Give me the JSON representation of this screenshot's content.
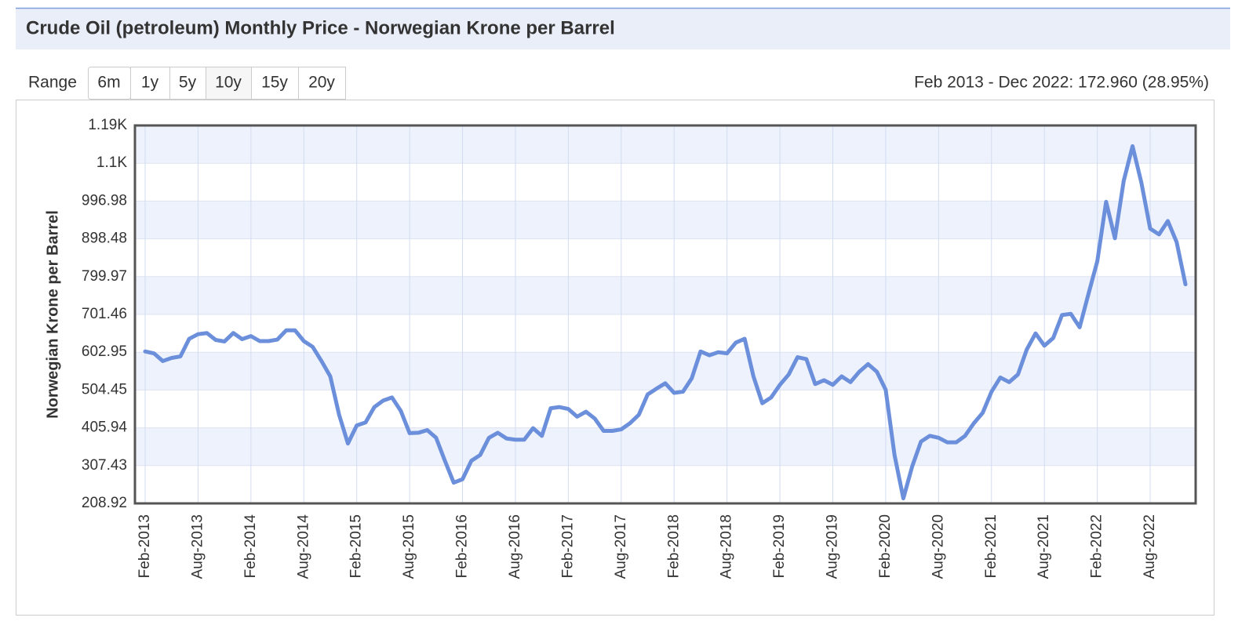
{
  "title": "Crude Oil (petroleum) Monthly Price - Norwegian Krone per Barrel",
  "range_label": "Range",
  "range_buttons": [
    {
      "label": "6m",
      "selected": false
    },
    {
      "label": "1y",
      "selected": false
    },
    {
      "label": "5y",
      "selected": false
    },
    {
      "label": "10y",
      "selected": true
    },
    {
      "label": "15y",
      "selected": false
    },
    {
      "label": "20y",
      "selected": false
    }
  ],
  "range_summary": "Feb 2013 - Dec 2022: 172.960 (28.95%)",
  "chart_data": {
    "type": "line",
    "y_label": "Norwegian Krone per Barrel",
    "categories": [
      "Feb-2013",
      null,
      null,
      null,
      null,
      null,
      "Aug-2013",
      null,
      null,
      null,
      null,
      null,
      "Feb-2014",
      null,
      null,
      null,
      null,
      null,
      "Aug-2014",
      null,
      null,
      null,
      null,
      null,
      "Feb-2015",
      null,
      null,
      null,
      null,
      null,
      "Aug-2015",
      null,
      null,
      null,
      null,
      null,
      "Feb-2016",
      null,
      null,
      null,
      null,
      null,
      "Aug-2016",
      null,
      null,
      null,
      null,
      null,
      "Feb-2017",
      null,
      null,
      null,
      null,
      null,
      "Aug-2017",
      null,
      null,
      null,
      null,
      null,
      "Feb-2018",
      null,
      null,
      null,
      null,
      null,
      "Aug-2018",
      null,
      null,
      null,
      null,
      null,
      "Feb-2019",
      null,
      null,
      null,
      null,
      null,
      "Aug-2019",
      null,
      null,
      null,
      null,
      null,
      "Feb-2020",
      null,
      null,
      null,
      null,
      null,
      "Aug-2020",
      null,
      null,
      null,
      null,
      null,
      "Feb-2021",
      null,
      null,
      null,
      null,
      null,
      "Aug-2021",
      null,
      null,
      null,
      null,
      null,
      "Feb-2022",
      null,
      null,
      null,
      null,
      null,
      "Aug-2022",
      null,
      null,
      null,
      null
    ],
    "series": [
      {
        "name": "Norwegian Krone per Barrel",
        "color": "#6b8fdb",
        "values": [
          605,
          600,
          580,
          588,
          592,
          638,
          650,
          653,
          635,
          631,
          653,
          637,
          645,
          632,
          632,
          636,
          660,
          660,
          632,
          617,
          580,
          540,
          440,
          365,
          412,
          420,
          460,
          477,
          485,
          450,
          392,
          393,
          400,
          380,
          320,
          263,
          272,
          320,
          335,
          380,
          393,
          378,
          375,
          375,
          405,
          385,
          457,
          460,
          455,
          435,
          448,
          430,
          398,
          398,
          402,
          418,
          440,
          493,
          508,
          522,
          497,
          500,
          535,
          605,
          595,
          603,
          600,
          628,
          638,
          540,
          470,
          485,
          518,
          545,
          590,
          585,
          520,
          530,
          518,
          540,
          525,
          552,
          572,
          552,
          505,
          335,
          222,
          305,
          370,
          385,
          380,
          368,
          368,
          385,
          418,
          445,
          500,
          537,
          525,
          545,
          610,
          652,
          620,
          640,
          700,
          703,
          668,
          755,
          840,
          995,
          900,
          1050,
          1140,
          1045,
          925,
          910,
          945,
          890,
          780
        ]
      }
    ],
    "ylim": [
      208.92,
      1194
    ],
    "yticks": [
      208.92,
      307.43,
      405.94,
      504.45,
      602.95,
      701.46,
      799.97,
      898.48,
      996.98,
      {
        "value": 1095.49,
        "label": "1.1K"
      },
      {
        "value": 1194,
        "label": "1.19K"
      }
    ],
    "grid": true,
    "legend": false
  }
}
